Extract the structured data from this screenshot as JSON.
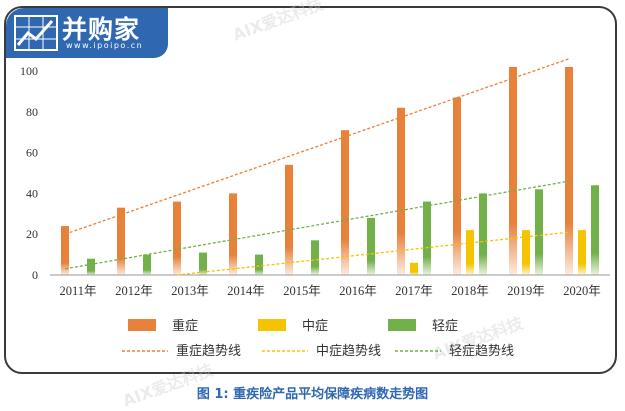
{
  "logo": {
    "name": "并购家",
    "url": "www.ipoipo.cn"
  },
  "caption": "图 1: 重疾险产品平均保障疾病数走势图",
  "watermark": "AIX爱达科技",
  "colors": {
    "heavy": "#e8813a",
    "medium": "#f5c400",
    "light": "#72b04a",
    "axis": "#999999",
    "brand": "#2f67b0"
  },
  "chart_data": {
    "type": "bar",
    "categories": [
      "2011年",
      "2012年",
      "2013年",
      "2014年",
      "2015年",
      "2016年",
      "2017年",
      "2018年",
      "2019年",
      "2020年"
    ],
    "ylim": [
      0,
      110
    ],
    "yticks": [
      0,
      20,
      40,
      60,
      80,
      100
    ],
    "series": [
      {
        "name": "重症",
        "key": "heavy",
        "values": [
          24,
          33,
          36,
          40,
          54,
          71,
          82,
          87,
          102,
          102
        ]
      },
      {
        "name": "中症",
        "key": "medium",
        "values": [
          null,
          null,
          null,
          null,
          null,
          null,
          6,
          22,
          22,
          22
        ]
      },
      {
        "name": "轻症",
        "key": "light",
        "values": [
          8,
          10,
          11,
          10,
          17,
          28,
          36,
          40,
          42,
          44
        ]
      }
    ],
    "trendlines": [
      {
        "name": "重症趋势线",
        "key": "heavy",
        "from": [
          "2011年",
          20
        ],
        "to": [
          "2020年",
          106
        ]
      },
      {
        "name": "中症趋势线",
        "key": "medium",
        "from": [
          "2013年",
          0
        ],
        "to": [
          "2020年",
          21
        ]
      },
      {
        "name": "轻症趋势线",
        "key": "light",
        "from": [
          "2011年",
          3
        ],
        "to": [
          "2020年",
          46
        ]
      }
    ],
    "legend_position": "bottom"
  }
}
